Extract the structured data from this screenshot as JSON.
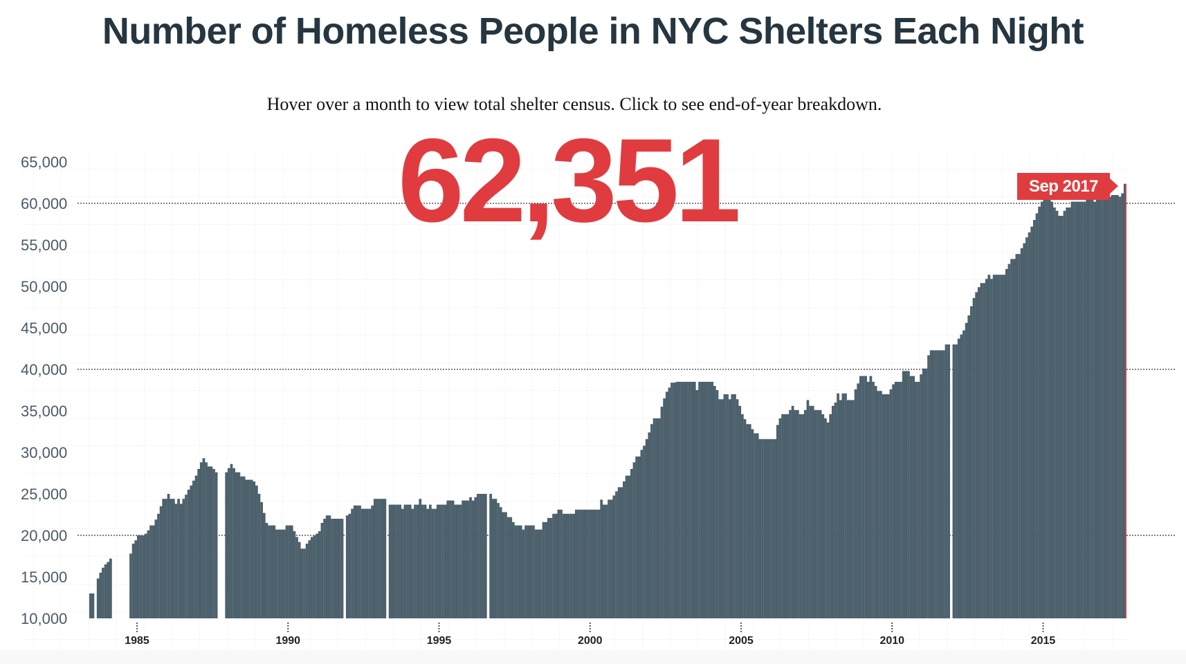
{
  "title": "Number of Homeless People in NYC Shelters Each Night",
  "subtitle": "Hover over a month to view total shelter census. Click to see end-of-year breakdown.",
  "highlight": {
    "value": "62,351",
    "label": "Sep 2017",
    "color": "#e03c3f"
  },
  "colors": {
    "bars": "#4d616d",
    "accent": "#e03c3f",
    "text": "#263640"
  },
  "chart_data": {
    "type": "bar",
    "title": "Number of Homeless People in NYC Shelters Each Night",
    "frequency": "monthly",
    "ylim": [
      10000,
      65000
    ],
    "yticks": [
      "65,000",
      "60,000",
      "55,000",
      "50,000",
      "45,000",
      "40,000",
      "35,000",
      "30,000",
      "25,000",
      "20,000",
      "15,000",
      "10,000"
    ],
    "reference_lines": [
      20000,
      40000,
      60000
    ],
    "xticks": [
      "1985",
      "1990",
      "1995",
      "2000",
      "2005",
      "2010",
      "2015"
    ],
    "grid": true,
    "start": "1983-01",
    "values_by_year": {
      "1983": [
        null,
        null,
        null,
        null,
        null,
        13000,
        13000,
        null,
        14800,
        15500,
        16100,
        16500
      ],
      "1984": [
        16800,
        17200,
        null,
        null,
        null,
        null,
        null,
        null,
        null,
        17800,
        19000,
        19400
      ],
      "1985": [
        20000,
        20000,
        20000,
        20200,
        20600,
        21200,
        21200,
        21900,
        22600,
        23500,
        24400,
        24400
      ],
      "1986": [
        25000,
        24400,
        24400,
        23800,
        24400,
        23800,
        24400,
        24900,
        25500,
        26000,
        26600,
        27200
      ],
      "1987": [
        28000,
        28800,
        29300,
        28800,
        28300,
        28300,
        28000,
        27600,
        null,
        null,
        null,
        27600
      ],
      "1988": [
        28100,
        28600,
        28100,
        27600,
        27600,
        27100,
        27100,
        26700,
        26700,
        26700,
        26500,
        26000
      ],
      "1989": [
        25000,
        24000,
        22700,
        21500,
        21200,
        21200,
        21200,
        20700,
        20700,
        20700,
        20700,
        21200
      ],
      "1990": [
        21200,
        21200,
        20500,
        19800,
        19200,
        18400,
        18400,
        19000,
        19400,
        19800,
        20000,
        20200
      ],
      "1991": [
        20500,
        21500,
        22000,
        22400,
        22400,
        22000,
        22000,
        22000,
        22000,
        22000,
        null,
        22400
      ],
      "1992": [
        22600,
        23200,
        23600,
        23600,
        23600,
        23200,
        23200,
        23200,
        23200,
        23600,
        24400,
        24400
      ],
      "1993": [
        24400,
        24400,
        24400,
        null,
        23700,
        23700,
        23700,
        23700,
        23700,
        23200,
        23700,
        23700
      ],
      "1994": [
        23700,
        23200,
        23700,
        23700,
        24400,
        23700,
        23700,
        23200,
        23700,
        23200,
        23200,
        23700
      ],
      "1995": [
        23700,
        23700,
        23700,
        24200,
        24200,
        24200,
        23700,
        23700,
        23700,
        24200,
        24200,
        24200
      ],
      "1996": [
        24600,
        24200,
        24600,
        25000,
        25000,
        25000,
        25000,
        null,
        25000,
        24400,
        24400,
        23900
      ],
      "1997": [
        23400,
        22800,
        22800,
        22200,
        22200,
        21600,
        21200,
        21200,
        21200,
        20700,
        21200,
        21200
      ],
      "1998": [
        21200,
        21200,
        20700,
        20700,
        20700,
        21600,
        21600,
        22100,
        22100,
        22600,
        22600,
        23100
      ],
      "1999": [
        23100,
        22600,
        22600,
        22600,
        22600,
        22600,
        23100,
        23100,
        23100,
        23100,
        23100,
        23100
      ],
      "2000": [
        23100,
        23100,
        23100,
        23100,
        24300,
        23700,
        23700,
        24300,
        24300,
        24800,
        25300,
        25800
      ],
      "2001": [
        25800,
        26500,
        27200,
        27200,
        28000,
        28800,
        29500,
        29500,
        30300,
        30800,
        31600,
        32400
      ],
      "2002": [
        33400,
        34100,
        34100,
        34100,
        35500,
        36500,
        37300,
        37800,
        38400,
        38400,
        38500,
        38500
      ],
      "2003": [
        38500,
        38500,
        38500,
        38500,
        38500,
        38500,
        37500,
        38500,
        38500,
        38500,
        38500,
        38500
      ],
      "2004": [
        38500,
        38000,
        37500,
        36400,
        36400,
        37000,
        37000,
        36400,
        37000,
        37000,
        36400,
        35600
      ],
      "2005": [
        34600,
        34000,
        33400,
        33400,
        32800,
        32300,
        32300,
        31600,
        31600,
        31600,
        31600,
        31600
      ],
      "2006": [
        31600,
        31600,
        33300,
        34100,
        34600,
        34600,
        34600,
        35100,
        35600,
        35100,
        35100,
        34600
      ],
      "2007": [
        34600,
        35100,
        36300,
        35600,
        35600,
        35100,
        35100,
        35100,
        34600,
        34100,
        33600,
        34600
      ],
      "2008": [
        35600,
        36000,
        37100,
        36300,
        37100,
        37100,
        36300,
        36300,
        36300,
        37600,
        38300,
        39200
      ],
      "2009": [
        39200,
        39200,
        38500,
        39200,
        38500,
        38000,
        37400,
        37400,
        37000,
        37000,
        37000,
        37600
      ],
      "2010": [
        38200,
        38500,
        38500,
        38500,
        39800,
        39800,
        39800,
        39200,
        39200,
        38500,
        38500,
        39400
      ],
      "2011": [
        40100,
        40100,
        41700,
        42300,
        42300,
        42300,
        42300,
        42300,
        42300,
        43000,
        43000,
        null
      ],
      "2012": [
        43000,
        43000,
        43700,
        44200,
        44700,
        45600,
        46500,
        47600,
        48600,
        49300,
        49900,
        50400
      ],
      "2013": [
        50400,
        50900,
        51400,
        50900,
        51400,
        51400,
        51400,
        51400,
        51400,
        52100,
        52700,
        53300
      ],
      "2014": [
        53300,
        53900,
        53900,
        54600,
        55200,
        55900,
        56500,
        57200,
        58000,
        58800,
        59600,
        60200
      ],
      "2015": [
        60500,
        60500,
        60500,
        60200,
        59500,
        59100,
        58500,
        58500,
        59100,
        59500,
        59500,
        60200
      ],
      "2016": [
        60200,
        60200,
        60200,
        60200,
        60200,
        60500,
        60500,
        60500,
        60200,
        60500,
        60500,
        60500
      ],
      "2017": [
        60500,
        60800,
        60800,
        61000,
        61000,
        61000,
        60800,
        61200,
        62351,
        null,
        null,
        null
      ]
    }
  }
}
